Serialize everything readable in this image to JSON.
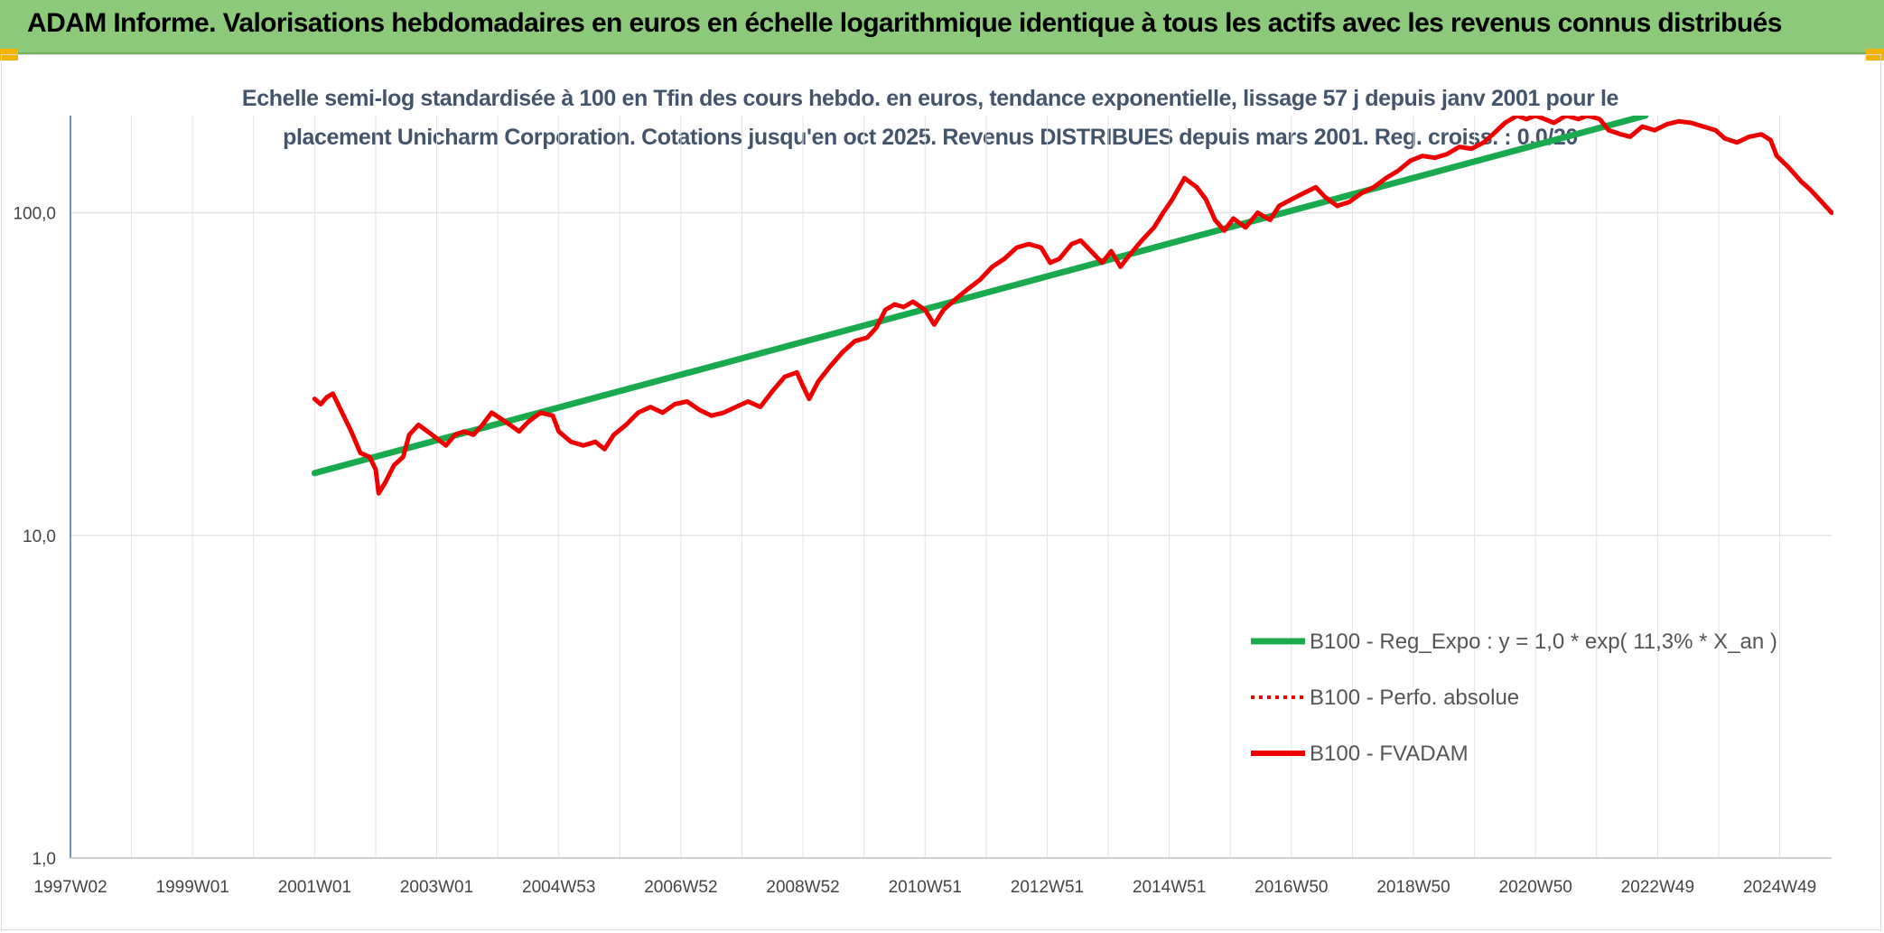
{
  "header": {
    "title": "ADAM Informe. Valorisations hebdomadaires en euros en échelle logarithmique identique à tous les actifs avec les revenus connus distribués"
  },
  "colors": {
    "banner": "#8cc97a",
    "corner_accent": "#f2b400",
    "regression": "#1aaa4e",
    "fvadam": "#ee0000",
    "perfo": "#ee0000",
    "subtitle": "#44546a"
  },
  "chart_data": {
    "type": "line",
    "subtitle_lines": [
      "Echelle semi-log standardisée à 100 en Tfin des cours hebdo. en euros, tendance exponentielle, lissage 57 j depuis janv 2001 pour le",
      "placement Unicharm Corporation. Cotations jusqu'en oct 2025. Revenus DISTRIBUES depuis mars 2001. Reg. croiss. : 0,0/20"
    ],
    "y_scale": "log",
    "ylim": [
      1,
      200
    ],
    "y_ticks": [
      {
        "value": 1,
        "label": "1,0"
      },
      {
        "value": 10,
        "label": "10,0"
      },
      {
        "value": 100,
        "label": "100,0"
      }
    ],
    "xlim": [
      1997.0,
      2025.85
    ],
    "x_ticks": [
      {
        "value": 1997.0,
        "label": "1997W02"
      },
      {
        "value": 1999.0,
        "label": "1999W01"
      },
      {
        "value": 2001.0,
        "label": "2001W01"
      },
      {
        "value": 2003.0,
        "label": "2003W01"
      },
      {
        "value": 2005.0,
        "label": "2004W53"
      },
      {
        "value": 2007.0,
        "label": "2006W52"
      },
      {
        "value": 2009.0,
        "label": "2008W52"
      },
      {
        "value": 2011.0,
        "label": "2010W51"
      },
      {
        "value": 2013.0,
        "label": "2012W51"
      },
      {
        "value": 2015.0,
        "label": "2014W51"
      },
      {
        "value": 2017.0,
        "label": "2016W50"
      },
      {
        "value": 2019.0,
        "label": "2018W50"
      },
      {
        "value": 2021.0,
        "label": "2020W50"
      },
      {
        "value": 2023.0,
        "label": "2022W49"
      },
      {
        "value": 2025.0,
        "label": "2024W49"
      }
    ],
    "grid": true,
    "legend_position": "bottom-right",
    "series": [
      {
        "name": "B100 - Reg_Expo : y = 1,0 * exp( 11,3% *  X_an )",
        "style": "solid-thick",
        "color": "#1aaa4e",
        "points": [
          [
            2001.0,
            15.6
          ],
          [
            2022.8,
            200
          ]
        ]
      },
      {
        "name": "B100 - Perfo. absolue",
        "style": "dotted",
        "color": "#ee0000",
        "points": []
      },
      {
        "name": "B100 - FVADAM",
        "style": "solid",
        "color": "#ee0000",
        "points": [
          [
            2001.0,
            26.5
          ],
          [
            2001.1,
            25.5
          ],
          [
            2001.2,
            26.8
          ],
          [
            2001.3,
            27.5
          ],
          [
            2001.45,
            24.0
          ],
          [
            2001.6,
            21.0
          ],
          [
            2001.75,
            18.0
          ],
          [
            2001.9,
            17.5
          ],
          [
            2002.0,
            16.0
          ],
          [
            2002.05,
            13.5
          ],
          [
            2002.15,
            14.5
          ],
          [
            2002.3,
            16.5
          ],
          [
            2002.45,
            17.5
          ],
          [
            2002.55,
            20.5
          ],
          [
            2002.7,
            22.0
          ],
          [
            2002.85,
            21.0
          ],
          [
            2003.0,
            20.0
          ],
          [
            2003.15,
            19.0
          ],
          [
            2003.3,
            20.5
          ],
          [
            2003.45,
            21.0
          ],
          [
            2003.6,
            20.5
          ],
          [
            2003.75,
            22.0
          ],
          [
            2003.9,
            24.0
          ],
          [
            2004.05,
            23.0
          ],
          [
            2004.2,
            22.0
          ],
          [
            2004.35,
            21.0
          ],
          [
            2004.5,
            22.5
          ],
          [
            2004.7,
            24.0
          ],
          [
            2004.9,
            23.5
          ],
          [
            2005.0,
            21.0
          ],
          [
            2005.2,
            19.5
          ],
          [
            2005.4,
            19.0
          ],
          [
            2005.6,
            19.5
          ],
          [
            2005.75,
            18.5
          ],
          [
            2005.9,
            20.5
          ],
          [
            2006.1,
            22.0
          ],
          [
            2006.3,
            24.0
          ],
          [
            2006.5,
            25.0
          ],
          [
            2006.7,
            24.0
          ],
          [
            2006.9,
            25.5
          ],
          [
            2007.1,
            26.0
          ],
          [
            2007.3,
            24.5
          ],
          [
            2007.5,
            23.5
          ],
          [
            2007.7,
            24.0
          ],
          [
            2007.9,
            25.0
          ],
          [
            2008.1,
            26.0
          ],
          [
            2008.3,
            25.0
          ],
          [
            2008.5,
            28.0
          ],
          [
            2008.7,
            31.0
          ],
          [
            2008.9,
            32.0
          ],
          [
            2009.0,
            29.0
          ],
          [
            2009.1,
            26.5
          ],
          [
            2009.25,
            30.0
          ],
          [
            2009.45,
            33.5
          ],
          [
            2009.65,
            37.0
          ],
          [
            2009.85,
            40.0
          ],
          [
            2010.05,
            41.0
          ],
          [
            2010.2,
            44.0
          ],
          [
            2010.35,
            50.0
          ],
          [
            2010.5,
            52.0
          ],
          [
            2010.65,
            51.0
          ],
          [
            2010.8,
            53.0
          ],
          [
            2011.0,
            50.0
          ],
          [
            2011.15,
            45.0
          ],
          [
            2011.3,
            50.0
          ],
          [
            2011.5,
            54.0
          ],
          [
            2011.7,
            58.0
          ],
          [
            2011.9,
            62.0
          ],
          [
            2012.1,
            68.0
          ],
          [
            2012.3,
            72.0
          ],
          [
            2012.5,
            78.0
          ],
          [
            2012.7,
            80.0
          ],
          [
            2012.9,
            78.0
          ],
          [
            2013.05,
            70.0
          ],
          [
            2013.2,
            72.0
          ],
          [
            2013.4,
            80.0
          ],
          [
            2013.55,
            82.0
          ],
          [
            2013.75,
            75.0
          ],
          [
            2013.9,
            70.0
          ],
          [
            2014.05,
            76.0
          ],
          [
            2014.2,
            68.0
          ],
          [
            2014.35,
            74.0
          ],
          [
            2014.55,
            82.0
          ],
          [
            2014.75,
            90.0
          ],
          [
            2014.9,
            100.0
          ],
          [
            2015.05,
            110.0
          ],
          [
            2015.25,
            128.0
          ],
          [
            2015.45,
            120.0
          ],
          [
            2015.6,
            110.0
          ],
          [
            2015.75,
            95.0
          ],
          [
            2015.9,
            88.0
          ],
          [
            2016.05,
            96.0
          ],
          [
            2016.25,
            90.0
          ],
          [
            2016.45,
            100.0
          ],
          [
            2016.65,
            95.0
          ],
          [
            2016.8,
            105.0
          ],
          [
            2017.0,
            110.0
          ],
          [
            2017.2,
            115.0
          ],
          [
            2017.4,
            120.0
          ],
          [
            2017.55,
            112.0
          ],
          [
            2017.75,
            105.0
          ],
          [
            2017.95,
            108.0
          ],
          [
            2018.15,
            115.0
          ],
          [
            2018.35,
            120.0
          ],
          [
            2018.55,
            128.0
          ],
          [
            2018.75,
            135.0
          ],
          [
            2018.95,
            145.0
          ],
          [
            2019.15,
            150.0
          ],
          [
            2019.35,
            148.0
          ],
          [
            2019.55,
            152.0
          ],
          [
            2019.75,
            160.0
          ],
          [
            2019.95,
            158.0
          ],
          [
            2020.15,
            165.0
          ],
          [
            2020.3,
            175.0
          ],
          [
            2020.5,
            190.0
          ],
          [
            2020.7,
            200.0
          ],
          [
            2020.85,
            195.0
          ],
          [
            2021.0,
            200.0
          ],
          [
            2021.15,
            195.0
          ],
          [
            2021.3,
            190.0
          ],
          [
            2021.5,
            200.0
          ],
          [
            2021.7,
            195.0
          ],
          [
            2021.85,
            200.0
          ],
          [
            2022.05,
            195.0
          ],
          [
            2022.2,
            180.0
          ],
          [
            2022.4,
            175.0
          ],
          [
            2022.55,
            172.0
          ],
          [
            2022.75,
            185.0
          ],
          [
            2022.95,
            180.0
          ],
          [
            2023.15,
            188.0
          ],
          [
            2023.35,
            192.0
          ],
          [
            2023.55,
            190.0
          ],
          [
            2023.75,
            185.0
          ],
          [
            2023.95,
            180.0
          ],
          [
            2024.1,
            170.0
          ],
          [
            2024.3,
            165.0
          ],
          [
            2024.5,
            172.0
          ],
          [
            2024.7,
            175.0
          ],
          [
            2024.85,
            168.0
          ],
          [
            2024.95,
            150.0
          ],
          [
            2025.15,
            138.0
          ],
          [
            2025.35,
            125.0
          ],
          [
            2025.5,
            118.0
          ],
          [
            2025.65,
            110.0
          ],
          [
            2025.85,
            100.0
          ]
        ]
      }
    ]
  }
}
